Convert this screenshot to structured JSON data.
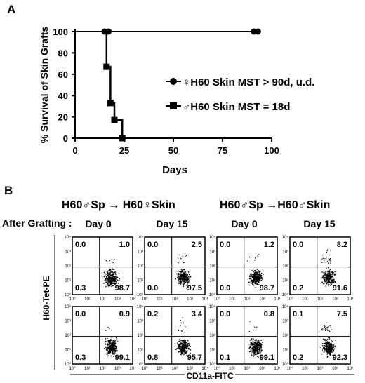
{
  "panel_a": {
    "letter": "A",
    "chart_data": {
      "type": "line",
      "title": "",
      "xlabel": "Days",
      "ylabel": "% Survival of Skin Grafts",
      "xlim": [
        0,
        100
      ],
      "ylim": [
        0,
        100
      ],
      "x_ticks": [
        "0",
        "25",
        "50",
        "75",
        "100"
      ],
      "y_ticks": [
        "0",
        "20",
        "40",
        "60",
        "80",
        "100"
      ],
      "grid": false,
      "legend_position": "right",
      "series": [
        {
          "name": "♀H60  Skin MST > 90d, u.d.",
          "marker": "circle",
          "color": "#000000",
          "points": [
            [
              15,
              100
            ],
            [
              17,
              100
            ],
            [
              91,
              100
            ],
            [
              93,
              100
            ]
          ]
        },
        {
          "name": "♂H60  Skin MST = 18d",
          "marker": "square",
          "color": "#000000",
          "points": [
            [
              16,
              67
            ],
            [
              18,
              33
            ],
            [
              20,
              17
            ],
            [
              24,
              0
            ]
          ]
        }
      ]
    }
  },
  "panel_b": {
    "letter": "B",
    "header_1": "H60♂Sp → H60♀Skin",
    "header_2": "H60♂Sp →H60♂Skin",
    "after_grafting": "After Grafting :",
    "day_labels": [
      "Day 0",
      "Day 15",
      "Day 0",
      "Day 15"
    ],
    "y_axis_label": "H60-Tet-PE",
    "x_axis_label": "CD11a-FITC",
    "tick_labels": [
      "10⁰",
      "10¹",
      "10²",
      "10³",
      "10⁴"
    ],
    "plots": [
      {
        "ul": "0.0",
        "ur": "1.0",
        "ll": "0.3",
        "lr": "98.7"
      },
      {
        "ul": "0.0",
        "ur": "2.5",
        "ll": "0.0",
        "lr": "97.5"
      },
      {
        "ul": "0.0",
        "ur": "1.2",
        "ll": "0.0",
        "lr": "98.7"
      },
      {
        "ul": "0.0",
        "ur": "8.2",
        "ll": "0.2",
        "lr": "91.6"
      },
      {
        "ul": "0.0",
        "ur": "0.9",
        "ll": "0.3",
        "lr": "99.1"
      },
      {
        "ul": "0.2",
        "ur": "3.4",
        "ll": "0.8",
        "lr": "95.7"
      },
      {
        "ul": "0.0",
        "ur": "0.8",
        "ll": "0.1",
        "lr": "99.1"
      },
      {
        "ul": "0.1",
        "ur": "7.5",
        "ll": "0.2",
        "lr": "92.3"
      }
    ]
  }
}
